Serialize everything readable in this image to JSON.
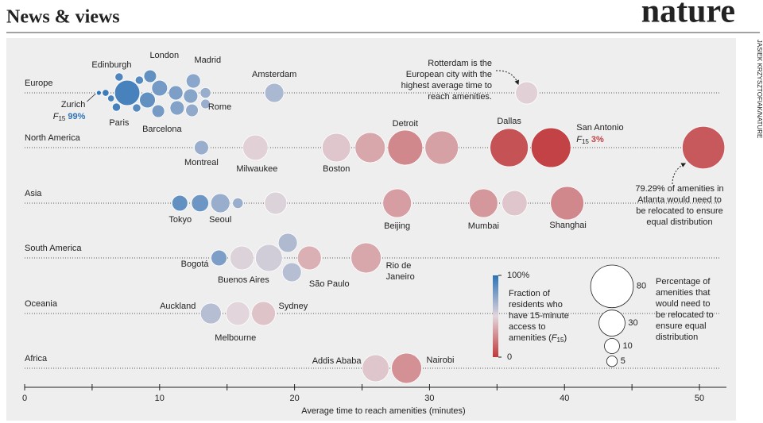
{
  "header": {
    "section": "News & views",
    "logo": "nature",
    "credit": "JASIEK KRZYSZTOFIAK/NATURE"
  },
  "chart_data": {
    "type": "beeswarm",
    "x_label": "Average time to reach amenities (minutes)",
    "xlim": [
      0,
      52
    ],
    "xticks": [
      0,
      10,
      20,
      30,
      40,
      50
    ],
    "xminor_ticks": [
      5,
      15,
      25,
      35,
      45
    ],
    "f15_symbol": {
      "letter": "F",
      "subscript": "15"
    },
    "regions": [
      {
        "name": "Europe",
        "points": [
          {
            "x": 5.5,
            "size": 1,
            "f15": 99,
            "label": "Zurich",
            "f15_label": "99%"
          },
          {
            "x": 6.0,
            "size": 2,
            "f15": 95,
            "label": null
          },
          {
            "x": 6.4,
            "size": 2,
            "f15": 92,
            "label": null
          },
          {
            "x": 6.8,
            "size": 3,
            "f15": 93,
            "label": "Edinburgh"
          },
          {
            "x": 7.0,
            "size": 3,
            "f15": 90,
            "label": "Paris"
          },
          {
            "x": 7.6,
            "size": 28,
            "f15": 92,
            "label": null
          },
          {
            "x": 8.3,
            "size": 3,
            "f15": 88,
            "label": null
          },
          {
            "x": 8.5,
            "size": 3,
            "f15": 88,
            "label": null
          },
          {
            "x": 9.1,
            "size": 11,
            "f15": 85,
            "label": null
          },
          {
            "x": 9.3,
            "size": 7,
            "f15": 85,
            "label": null
          },
          {
            "x": 10.0,
            "size": 11,
            "f15": 80,
            "label": "London"
          },
          {
            "x": 9.9,
            "size": 7,
            "f15": 80,
            "label": null
          },
          {
            "x": 11.2,
            "size": 9,
            "f15": 78,
            "label": null
          },
          {
            "x": 11.3,
            "size": 9,
            "f15": 76,
            "label": "Barcelona"
          },
          {
            "x": 12.3,
            "size": 9,
            "f15": 75,
            "label": null
          },
          {
            "x": 12.5,
            "size": 9,
            "f15": 74,
            "label": "Madrid"
          },
          {
            "x": 12.4,
            "size": 7,
            "f15": 72,
            "label": null
          },
          {
            "x": 13.4,
            "size": 5,
            "f15": 70,
            "label": "Rome"
          },
          {
            "x": 13.4,
            "size": 4,
            "f15": 70,
            "label": null
          },
          {
            "x": 18.5,
            "size": 16,
            "f15": 65,
            "label": "Amsterdam"
          },
          {
            "x": 37.2,
            "size": 22,
            "f15": 48,
            "label": null
          }
        ]
      },
      {
        "name": "North America",
        "points": [
          {
            "x": 13.1,
            "size": 9,
            "f15": 70,
            "label": "Montreal"
          },
          {
            "x": 17.1,
            "size": 28,
            "f15": 48,
            "label": "Milwaukee"
          },
          {
            "x": 23.1,
            "size": 36,
            "f15": 45,
            "label": "Boston"
          },
          {
            "x": 25.6,
            "size": 40,
            "f15": 35,
            "label": null
          },
          {
            "x": 28.2,
            "size": 54,
            "f15": 25,
            "label": "Detroit"
          },
          {
            "x": 30.9,
            "size": 49,
            "f15": 33,
            "label": null
          },
          {
            "x": 35.9,
            "size": 64,
            "f15": 8,
            "label": "Dallas"
          },
          {
            "x": 39.0,
            "size": 69,
            "f15": 3,
            "label": "San Antonio",
            "f15_label": "3%"
          },
          {
            "x": 50.3,
            "size": 79.29,
            "f15": 10,
            "label": null
          }
        ]
      },
      {
        "name": "Asia",
        "points": [
          {
            "x": 11.5,
            "size": 11,
            "f15": 85,
            "label": null
          },
          {
            "x": 13.0,
            "size": 13,
            "f15": 82,
            "label": "Tokyo"
          },
          {
            "x": 14.5,
            "size": 16,
            "f15": 70,
            "label": "Seoul"
          },
          {
            "x": 15.8,
            "size": 5,
            "f15": 70,
            "label": null
          },
          {
            "x": 18.6,
            "size": 22,
            "f15": 52,
            "label": null
          },
          {
            "x": 27.6,
            "size": 36,
            "f15": 32,
            "label": "Beijing"
          },
          {
            "x": 34.0,
            "size": 36,
            "f15": 30,
            "label": "Mumbai"
          },
          {
            "x": 36.3,
            "size": 28,
            "f15": 45,
            "label": null
          },
          {
            "x": 40.2,
            "size": 49,
            "f15": 25,
            "label": "Shanghai"
          }
        ]
      },
      {
        "name": "South America",
        "points": [
          {
            "x": 14.4,
            "size": 11,
            "f15": 78,
            "label": "Bogotá"
          },
          {
            "x": 16.1,
            "size": 25,
            "f15": 52,
            "label": null
          },
          {
            "x": 18.1,
            "size": 32,
            "f15": 55,
            "label": "Buenos Aires"
          },
          {
            "x": 19.8,
            "size": 16,
            "f15": 62,
            "label": null
          },
          {
            "x": 19.5,
            "size": 16,
            "f15": 64,
            "label": null
          },
          {
            "x": 21.1,
            "size": 25,
            "f15": 38,
            "label": "São Paulo"
          },
          {
            "x": 25.3,
            "size": 40,
            "f15": 35,
            "label": [
              "Rio de",
              "Janeiro"
            ]
          }
        ]
      },
      {
        "name": "Oceania",
        "points": [
          {
            "x": 13.8,
            "size": 19,
            "f15": 62,
            "label": "Auckland"
          },
          {
            "x": 15.8,
            "size": 25,
            "f15": 50,
            "label": "Melbourne"
          },
          {
            "x": 17.7,
            "size": 25,
            "f15": 44,
            "label": "Sydney"
          }
        ]
      },
      {
        "name": "Africa",
        "points": [
          {
            "x": 26.0,
            "size": 32,
            "f15": 45,
            "label": "Addis Ababa"
          },
          {
            "x": 28.3,
            "size": 40,
            "f15": 28,
            "label": "Nairobi"
          }
        ]
      }
    ],
    "color_scale": {
      "colors": [
        "#c0393b",
        "#e2d6dc",
        "#2b72b6"
      ],
      "lim": [
        0,
        100
      ],
      "ticks": [
        {
          "value": 100,
          "label": "100%"
        },
        0
      ],
      "title_lines": [
        "Fraction of",
        "residents who",
        "have 15-minute",
        "access to",
        "amenities ("
      ],
      "title_end": ")"
    },
    "size_legend": {
      "values": [
        80,
        30,
        10,
        5
      ],
      "title_lines": [
        "Percentage of",
        "amenities that",
        "would need to",
        "be relocated to",
        "ensure equal",
        "distribution"
      ]
    },
    "annotations": [
      {
        "lines": [
          "Rotterdam is the",
          "European city with the",
          "highest average time to",
          "reach amenities."
        ]
      },
      {
        "lines": [
          "79.29% of amenities in",
          "Atlanta would need to",
          "be relocated to ensure",
          "equal distribution"
        ]
      }
    ]
  }
}
